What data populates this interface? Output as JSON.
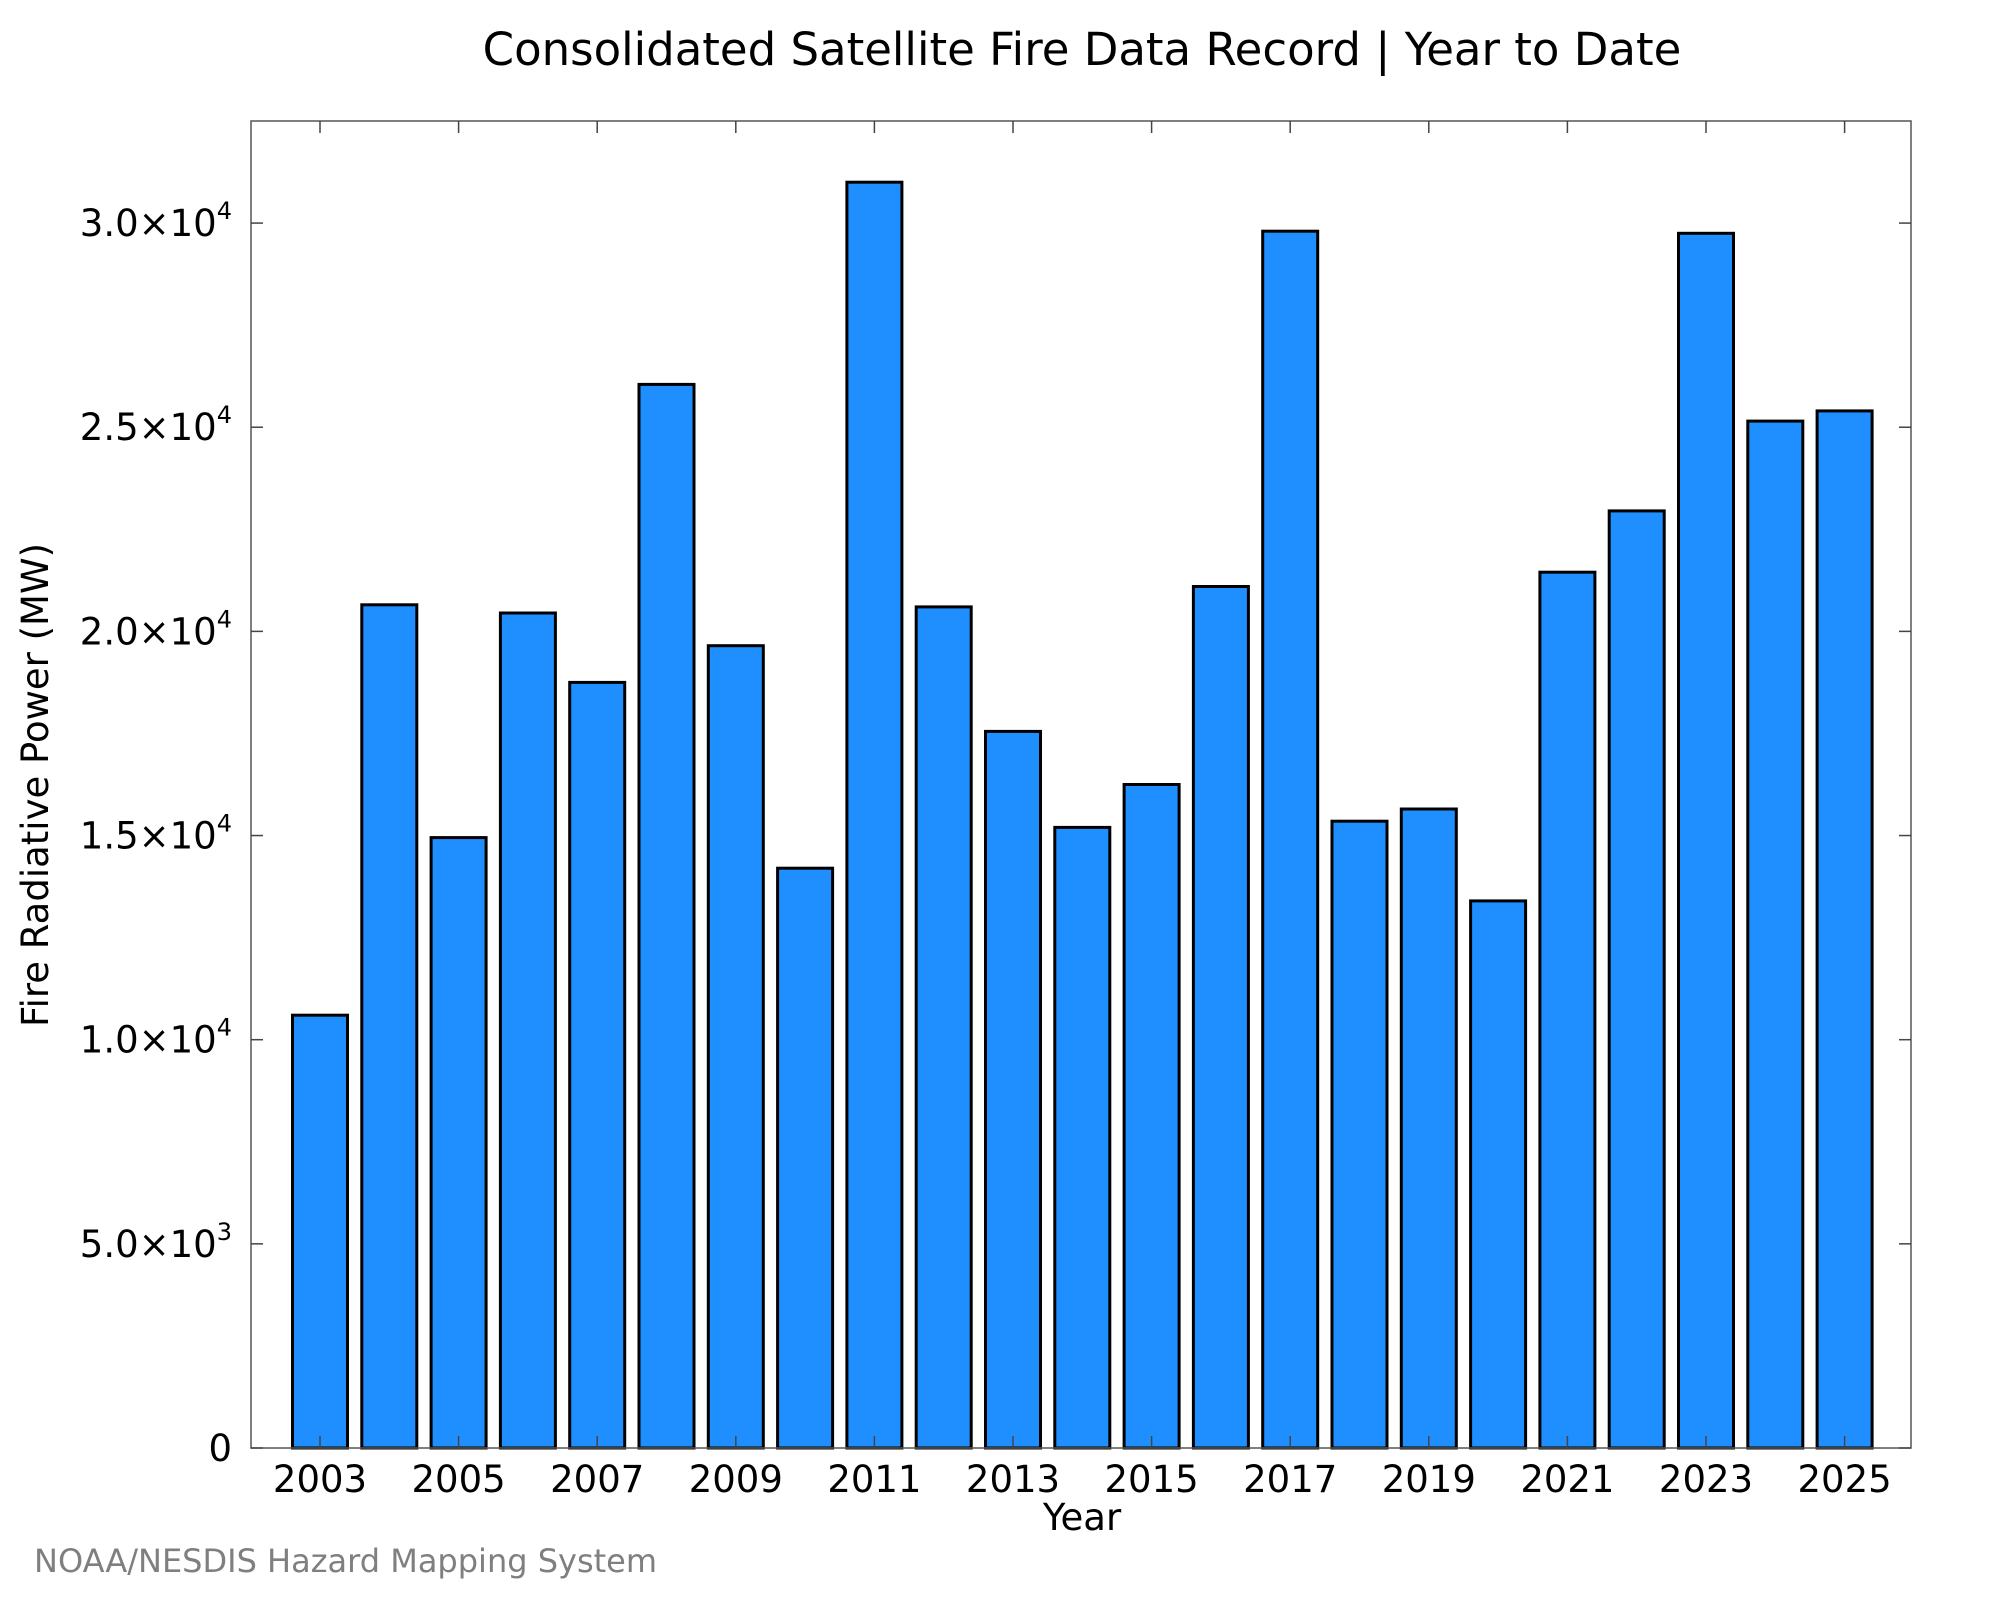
{
  "credit": "NOAA/NESDIS Hazard Mapping System",
  "chart_data": {
    "type": "bar",
    "title": "Consolidated Satellite Fire Data Record | Year to Date",
    "xlabel": "Year",
    "ylabel": "Fire Radiative Power (MW)",
    "categories": [
      "2003",
      "2004",
      "2005",
      "2006",
      "2007",
      "2008",
      "2009",
      "2010",
      "2011",
      "2012",
      "2013",
      "2014",
      "2015",
      "2016",
      "2017",
      "2018",
      "2019",
      "2020",
      "2021",
      "2022",
      "2023",
      "2024",
      "2025"
    ],
    "values": [
      10600,
      20650,
      14950,
      20450,
      18750,
      26050,
      19650,
      14200,
      31000,
      20600,
      17550,
      15200,
      16250,
      21100,
      29800,
      15350,
      15650,
      13400,
      21450,
      22950,
      29750,
      25150,
      25400
    ],
    "ylim": [
      0,
      32500
    ],
    "x_ticks": [
      "2003",
      "2005",
      "2007",
      "2009",
      "2011",
      "2013",
      "2015",
      "2017",
      "2019",
      "2021",
      "2023",
      "2025"
    ],
    "y_ticks": [
      {
        "value": 0,
        "mantissa": "0",
        "exp": ""
      },
      {
        "value": 5000,
        "mantissa": "5.0×10",
        "exp": "3"
      },
      {
        "value": 10000,
        "mantissa": "1.0×10",
        "exp": "4"
      },
      {
        "value": 15000,
        "mantissa": "1.5×10",
        "exp": "4"
      },
      {
        "value": 20000,
        "mantissa": "2.0×10",
        "exp": "4"
      },
      {
        "value": 25000,
        "mantissa": "2.5×10",
        "exp": "4"
      },
      {
        "value": 30000,
        "mantissa": "3.0×10",
        "exp": "4"
      }
    ],
    "bar_color": "#1f8fff",
    "grid": false,
    "legend": "none"
  }
}
